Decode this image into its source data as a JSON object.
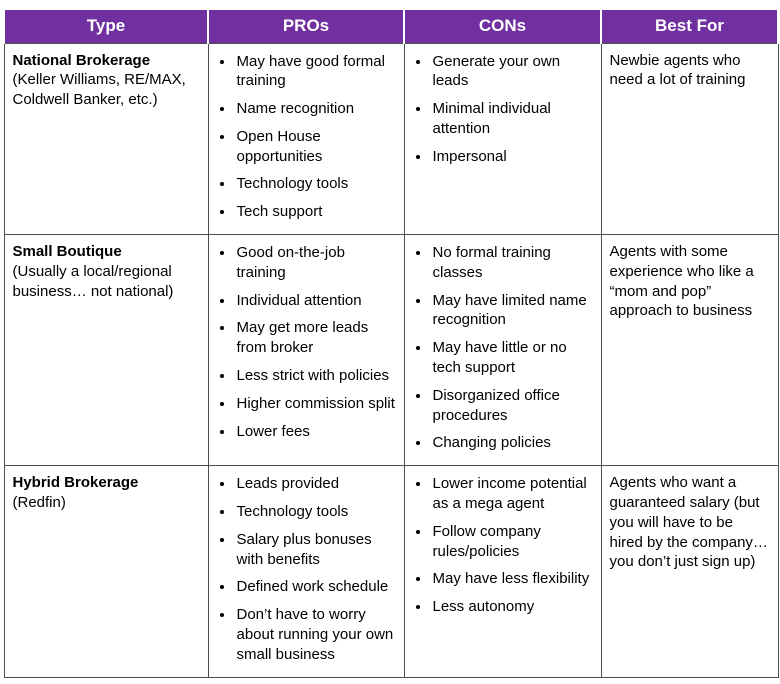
{
  "table": {
    "headers": [
      "Type",
      "PROs",
      "CONs",
      "Best For"
    ],
    "colors": {
      "header_bg": "#7030a0",
      "header_text": "#ffffff",
      "border": "#4d4d4d",
      "body_text": "#000000"
    },
    "rows": [
      {
        "type_title": "National Brokerage",
        "type_subtitle": "(Keller Williams, RE/MAX, Coldwell Banker, etc.)",
        "pros": [
          "May have good formal training",
          "Name recognition",
          "Open House opportunities",
          "Technology tools",
          "Tech support"
        ],
        "cons": [
          "Generate your own leads",
          "Minimal individual attention",
          "Impersonal"
        ],
        "best_for": "Newbie agents who need a lot of training"
      },
      {
        "type_title": "Small Boutique",
        "type_subtitle": "(Usually a local/regional business… not national)",
        "pros": [
          "Good on-the-job training",
          "Individual attention",
          "May get more leads from broker",
          "Less strict with policies",
          "Higher commission split",
          "Lower fees"
        ],
        "cons": [
          "No formal training classes",
          "May have limited name recognition",
          "May have little or no tech support",
          "Disorganized office procedures",
          "Changing policies"
        ],
        "best_for": "Agents with some experience who like a “mom and pop” approach to business"
      },
      {
        "type_title": "Hybrid Brokerage",
        "type_subtitle": "(Redfin)",
        "pros": [
          "Leads provided",
          "Technology tools",
          "Salary plus bonuses with benefits",
          "Defined work schedule",
          "Don’t have to worry about running your own small business"
        ],
        "cons": [
          "Lower income potential as a mega agent",
          "Follow company rules/policies",
          "May have less flexibility",
          "Less autonomy"
        ],
        "best_for": "Agents who want a guaranteed salary (but you will have to be hired by the company… you don’t just sign up)"
      }
    ]
  }
}
